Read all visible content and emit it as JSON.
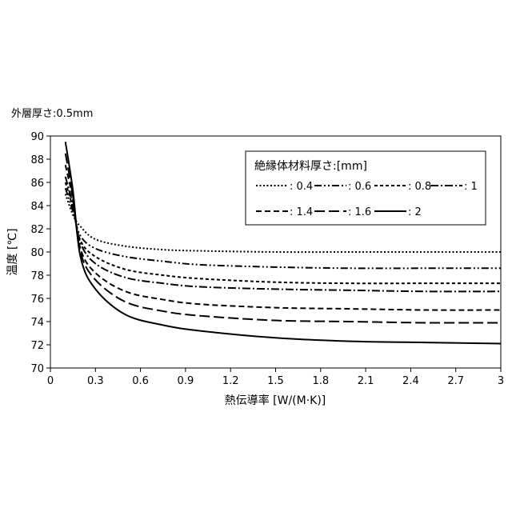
{
  "annotation": "外層厚さ:0.5mm",
  "chart_data": {
    "type": "line",
    "title": "",
    "xlabel": "熱伝導率 [W/(M·K)]",
    "ylabel": "温度 [℃]",
    "xlim": [
      0,
      3
    ],
    "ylim": [
      70,
      90
    ],
    "xticks": [
      0,
      0.3,
      0.6,
      0.9,
      1.2,
      1.5,
      1.8,
      2.1,
      2.4,
      2.7,
      3
    ],
    "xtick_labels": [
      "0",
      "0.3",
      "0.6",
      "0.9",
      "1.2",
      "1.5",
      "1.8",
      "2.1",
      "2.4",
      "2.7",
      "3"
    ],
    "yticks": [
      70,
      72,
      74,
      76,
      78,
      80,
      82,
      84,
      86,
      88,
      90
    ],
    "grid": false,
    "legend_title": "絶縁体材料厚さ:[mm]",
    "legend_position": "top-right",
    "x": [
      0.1,
      0.15,
      0.2,
      0.3,
      0.5,
      0.75,
      1.0,
      1.5,
      2.0,
      2.5,
      3.0
    ],
    "series": [
      {
        "name": ": 0.4",
        "dash": "dotted",
        "values": [
          85.0,
          83.2,
          82.2,
          81.1,
          80.5,
          80.2,
          80.1,
          80.0,
          80.0,
          80.0,
          80.0
        ]
      },
      {
        "name": ": 0.6",
        "dash": "dash-dot-dot",
        "values": [
          85.5,
          83.5,
          81.4,
          80.3,
          79.6,
          79.2,
          78.9,
          78.7,
          78.6,
          78.6,
          78.6
        ]
      },
      {
        "name": ": 0.8",
        "dash": "short-dash",
        "values": [
          86.0,
          83.8,
          81.0,
          79.6,
          78.5,
          78.0,
          77.7,
          77.4,
          77.3,
          77.3,
          77.3
        ]
      },
      {
        "name": ": 1",
        "dash": "dash-dot",
        "values": [
          86.5,
          84.0,
          80.8,
          79.0,
          77.8,
          77.3,
          77.0,
          76.8,
          76.7,
          76.6,
          76.6
        ]
      },
      {
        "name": ": 1.4",
        "dash": "medium-dash",
        "values": [
          87.5,
          84.5,
          80.3,
          78.2,
          76.6,
          75.9,
          75.5,
          75.2,
          75.1,
          75.0,
          75.0
        ]
      },
      {
        "name": ": 1.6",
        "dash": "long-dash",
        "values": [
          88.5,
          84.8,
          80.0,
          77.6,
          75.7,
          74.9,
          74.5,
          74.1,
          74.0,
          73.9,
          73.9
        ]
      },
      {
        "name": ": 2",
        "dash": "solid",
        "values": [
          89.5,
          85.3,
          79.6,
          76.8,
          74.6,
          73.7,
          73.2,
          72.6,
          72.3,
          72.2,
          72.1
        ]
      }
    ]
  }
}
